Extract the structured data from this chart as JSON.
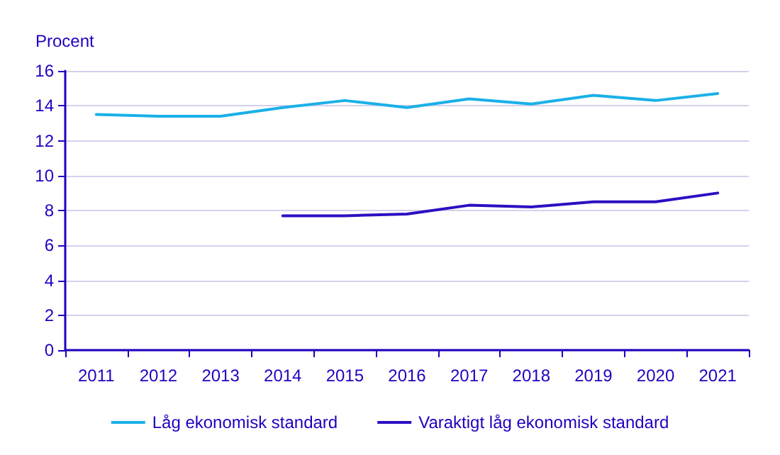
{
  "chart_data": {
    "type": "line",
    "ylabel": "Procent",
    "categories": [
      "2011",
      "2012",
      "2013",
      "2014",
      "2015",
      "2016",
      "2017",
      "2018",
      "2019",
      "2020",
      "2021"
    ],
    "series": [
      {
        "name": "Låg ekonomisk standard",
        "color": "#1ab0e8",
        "values": [
          13.5,
          13.4,
          13.4,
          13.9,
          14.3,
          13.9,
          14.4,
          14.1,
          14.6,
          14.3,
          14.7
        ]
      },
      {
        "name": "Varaktigt låg ekonomisk standard",
        "color": "#2d0fc3",
        "values": [
          null,
          null,
          null,
          7.7,
          7.7,
          7.8,
          8.3,
          8.2,
          8.5,
          8.5,
          9.0
        ]
      }
    ],
    "ylim": [
      0,
      16
    ],
    "yticks": [
      0,
      2,
      4,
      6,
      8,
      10,
      12,
      14,
      16
    ],
    "grid": "y",
    "legend": "bottom",
    "marker": "none",
    "line_style": "solid"
  }
}
